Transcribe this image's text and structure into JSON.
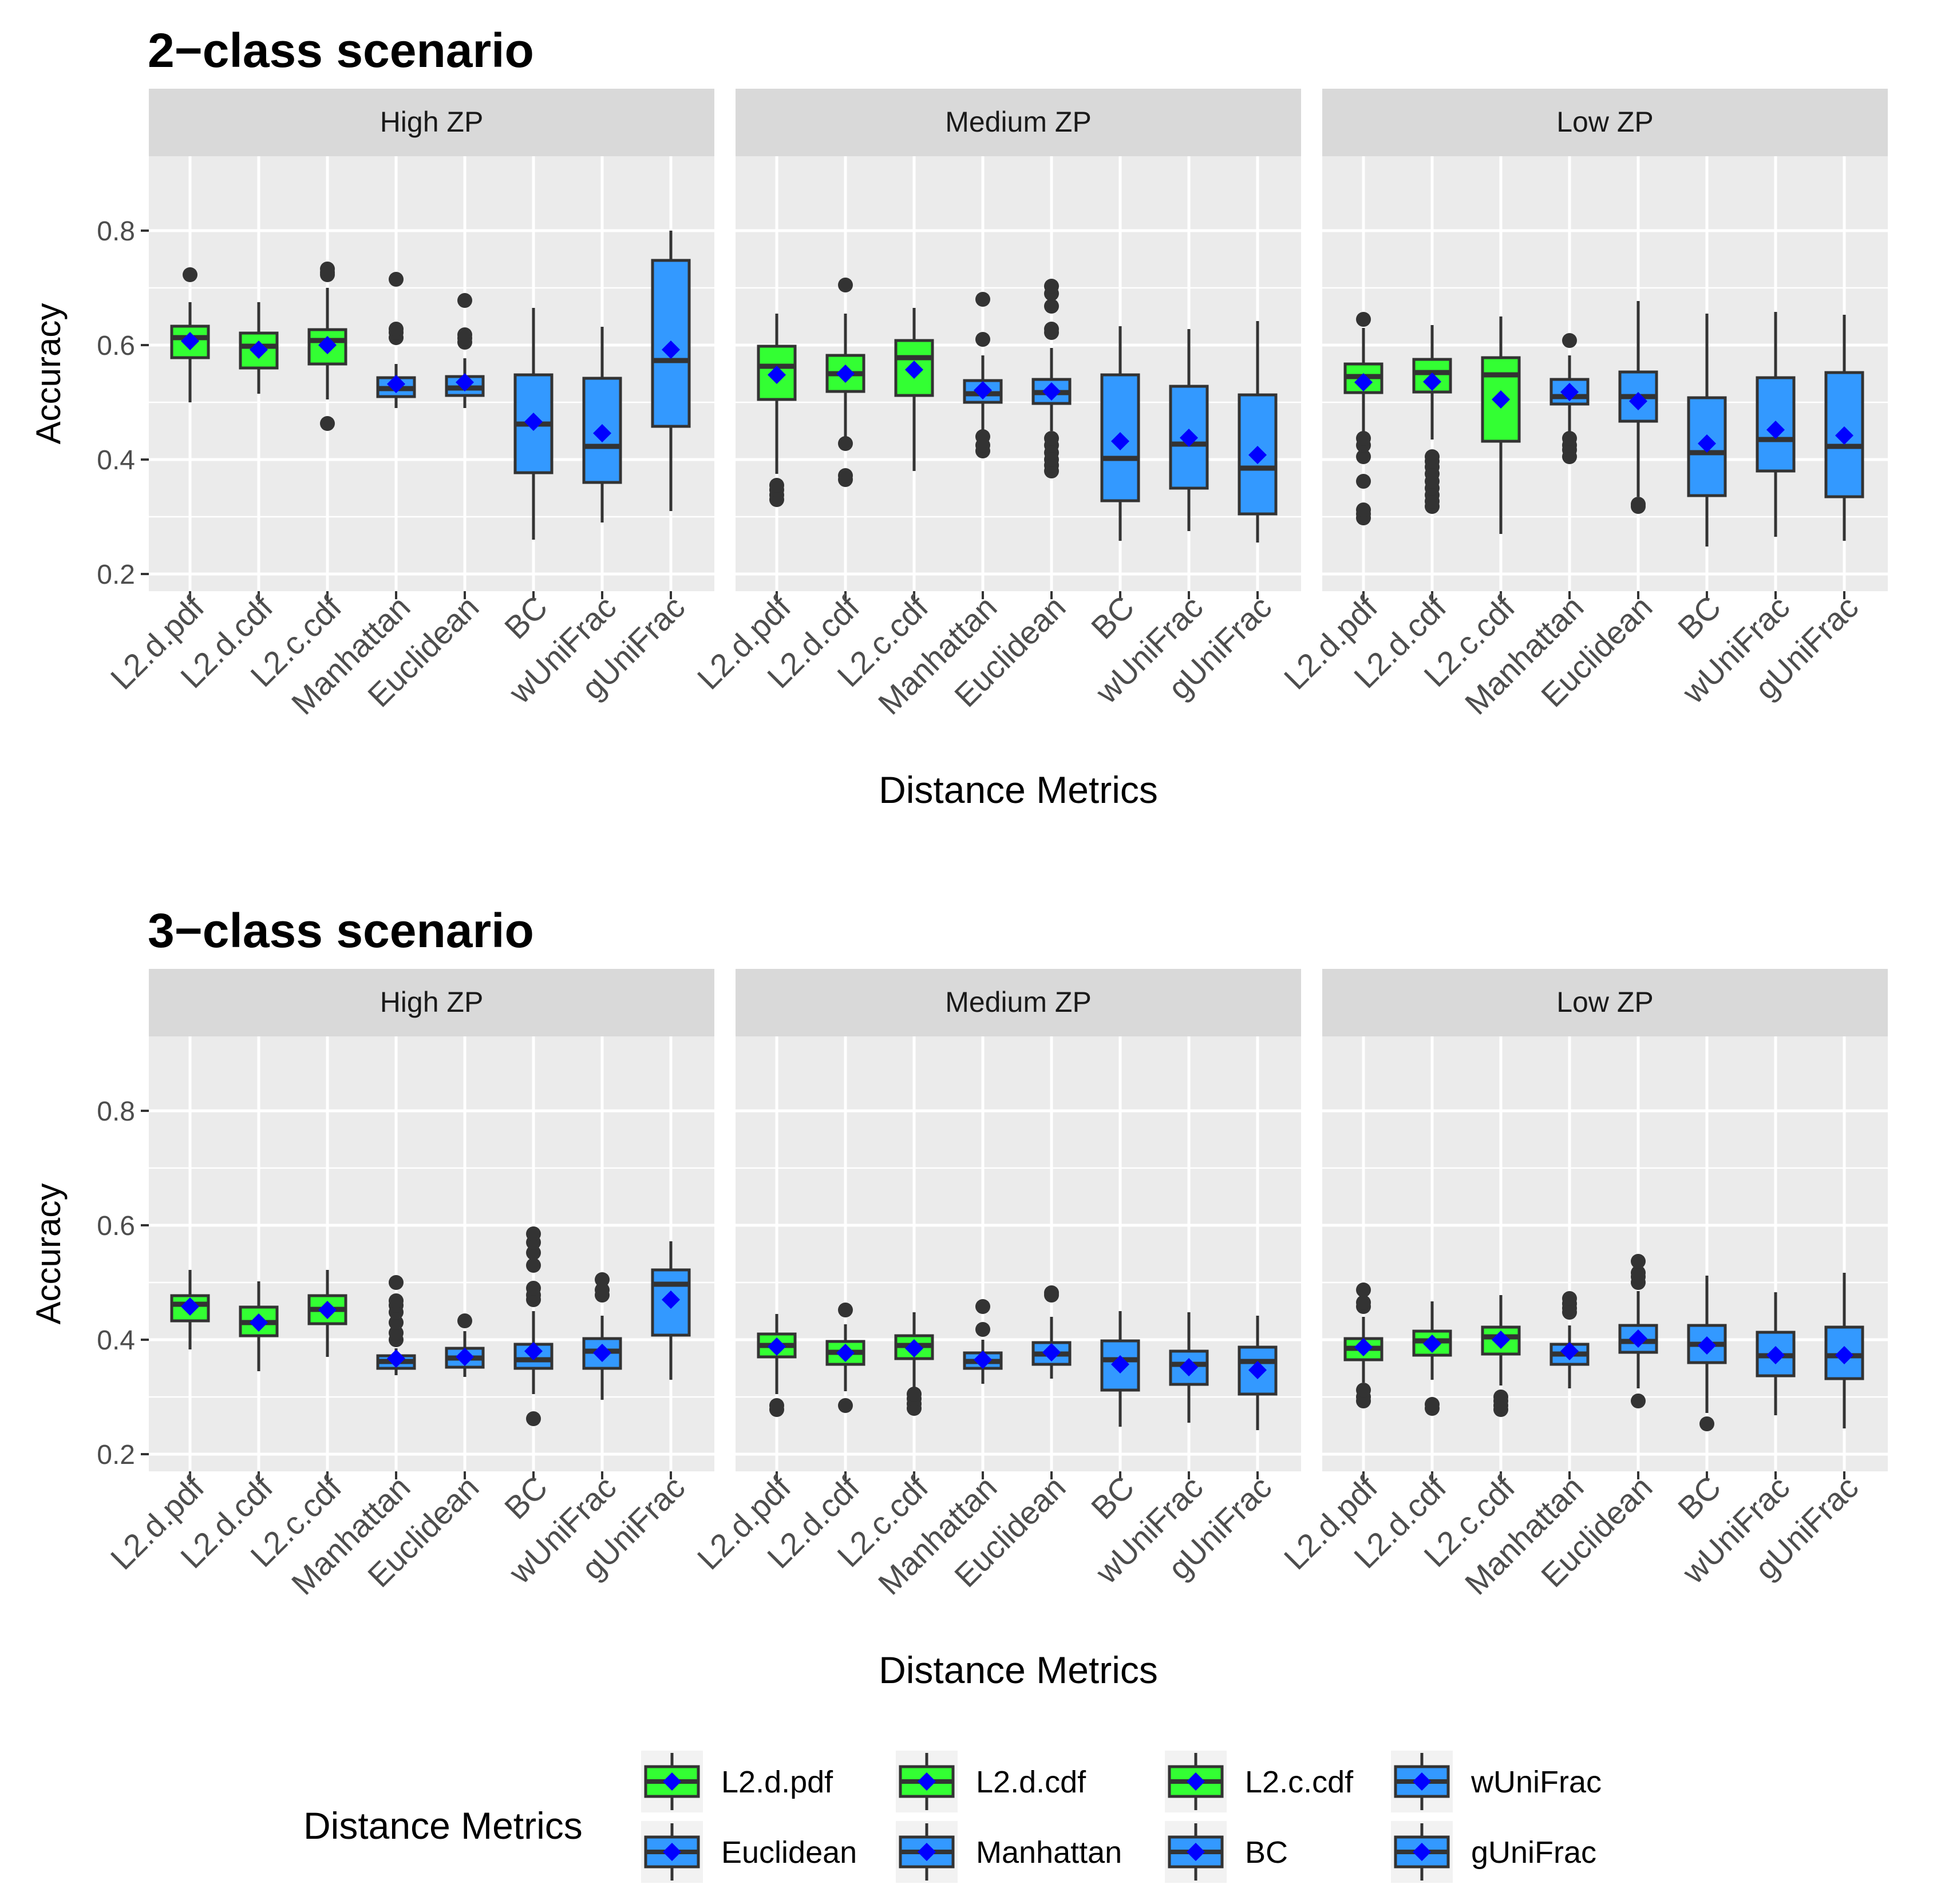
{
  "colors": {
    "l2": "#33FF33",
    "other": "#3399FF",
    "mean_marker": "#0000FF",
    "panel_bg": "#EBEBEB",
    "strip_bg": "#D9D9D9",
    "box_line": "#333333",
    "tick_text": "#4D4D4D"
  },
  "legend": {
    "title": "Distance Metrics",
    "items": [
      {
        "label": "L2.d.pdf",
        "color": "l2"
      },
      {
        "label": "L2.d.cdf",
        "color": "l2"
      },
      {
        "label": "L2.c.cdf",
        "color": "l2"
      },
      {
        "label": "wUniFrac",
        "color": "other"
      },
      {
        "label": "Euclidean",
        "color": "other"
      },
      {
        "label": "Manhattan",
        "color": "other"
      },
      {
        "label": "BC",
        "color": "other"
      },
      {
        "label": "gUniFrac",
        "color": "other"
      }
    ]
  },
  "chart_data": [
    {
      "type": "boxplot",
      "title": "2−class scenario",
      "xlabel": "Distance Metrics",
      "ylabel": "Accuracy",
      "ylim": [
        0.17,
        0.93
      ],
      "yticks": [
        0.2,
        0.4,
        0.6,
        0.8
      ],
      "ytick_labels": [
        "0.2",
        "0.4",
        "0.6",
        "0.8"
      ],
      "categories": [
        "L2.d.pdf",
        "L2.d.cdf",
        "L2.c.cdf",
        "Manhattan",
        "Euclidean",
        "BC",
        "wUniFrac",
        "gUniFrac"
      ],
      "category_colors": [
        "l2",
        "l2",
        "l2",
        "other",
        "other",
        "other",
        "other",
        "other"
      ],
      "facets": [
        {
          "label": "High ZP",
          "boxes": [
            {
              "min": 0.5,
              "q1": 0.578,
              "median": 0.613,
              "q3": 0.633,
              "max": 0.675,
              "mean": 0.607,
              "outliers": [
                0.723
              ]
            },
            {
              "min": 0.515,
              "q1": 0.56,
              "median": 0.598,
              "q3": 0.621,
              "max": 0.675,
              "mean": 0.592,
              "outliers": []
            },
            {
              "min": 0.505,
              "q1": 0.567,
              "median": 0.608,
              "q3": 0.627,
              "max": 0.7,
              "mean": 0.6,
              "outliers": [
                0.463,
                0.723,
                0.727,
                0.733
              ]
            },
            {
              "min": 0.49,
              "q1": 0.51,
              "median": 0.524,
              "q3": 0.543,
              "max": 0.567,
              "mean": 0.532,
              "outliers": [
                0.613,
                0.622,
                0.628,
                0.715
              ]
            },
            {
              "min": 0.49,
              "q1": 0.512,
              "median": 0.525,
              "q3": 0.545,
              "max": 0.577,
              "mean": 0.535,
              "outliers": [
                0.605,
                0.612,
                0.618,
                0.678
              ]
            },
            {
              "min": 0.26,
              "q1": 0.377,
              "median": 0.462,
              "q3": 0.548,
              "max": 0.665,
              "mean": 0.466,
              "outliers": []
            },
            {
              "min": 0.29,
              "q1": 0.36,
              "median": 0.423,
              "q3": 0.542,
              "max": 0.632,
              "mean": 0.446,
              "outliers": []
            },
            {
              "min": 0.31,
              "q1": 0.458,
              "median": 0.573,
              "q3": 0.748,
              "max": 0.8,
              "mean": 0.592,
              "outliers": []
            }
          ]
        },
        {
          "label": "Medium ZP",
          "boxes": [
            {
              "min": 0.375,
              "q1": 0.505,
              "median": 0.563,
              "q3": 0.598,
              "max": 0.655,
              "mean": 0.548,
              "outliers": [
                0.33,
                0.338,
                0.347,
                0.355
              ]
            },
            {
              "min": 0.44,
              "q1": 0.519,
              "median": 0.55,
              "q3": 0.582,
              "max": 0.655,
              "mean": 0.55,
              "outliers": [
                0.365,
                0.372,
                0.428,
                0.705
              ]
            },
            {
              "min": 0.38,
              "q1": 0.512,
              "median": 0.578,
              "q3": 0.608,
              "max": 0.665,
              "mean": 0.557,
              "outliers": []
            },
            {
              "min": 0.45,
              "q1": 0.5,
              "median": 0.515,
              "q3": 0.538,
              "max": 0.582,
              "mean": 0.521,
              "outliers": [
                0.415,
                0.425,
                0.44,
                0.61,
                0.68
              ]
            },
            {
              "min": 0.45,
              "q1": 0.498,
              "median": 0.517,
              "q3": 0.54,
              "max": 0.595,
              "mean": 0.519,
              "outliers": [
                0.38,
                0.39,
                0.4,
                0.412,
                0.425,
                0.437,
                0.622,
                0.628,
                0.668,
                0.69,
                0.703
              ]
            },
            {
              "min": 0.258,
              "q1": 0.328,
              "median": 0.402,
              "q3": 0.548,
              "max": 0.633,
              "mean": 0.432,
              "outliers": []
            },
            {
              "min": 0.275,
              "q1": 0.35,
              "median": 0.427,
              "q3": 0.528,
              "max": 0.628,
              "mean": 0.438,
              "outliers": []
            },
            {
              "min": 0.255,
              "q1": 0.305,
              "median": 0.385,
              "q3": 0.513,
              "max": 0.642,
              "mean": 0.408,
              "outliers": []
            }
          ]
        },
        {
          "label": "Low ZP",
          "boxes": [
            {
              "min": 0.445,
              "q1": 0.517,
              "median": 0.545,
              "q3": 0.567,
              "max": 0.63,
              "mean": 0.535,
              "outliers": [
                0.298,
                0.305,
                0.312,
                0.362,
                0.405,
                0.425,
                0.437,
                0.645
              ]
            },
            {
              "min": 0.435,
              "q1": 0.518,
              "median": 0.552,
              "q3": 0.575,
              "max": 0.635,
              "mean": 0.536,
              "outliers": [
                0.318,
                0.327,
                0.338,
                0.35,
                0.362,
                0.375,
                0.387,
                0.397,
                0.405
              ]
            },
            {
              "min": 0.27,
              "q1": 0.432,
              "median": 0.548,
              "q3": 0.578,
              "max": 0.65,
              "mean": 0.505,
              "outliers": []
            },
            {
              "min": 0.44,
              "q1": 0.497,
              "median": 0.51,
              "q3": 0.54,
              "max": 0.582,
              "mean": 0.518,
              "outliers": [
                0.405,
                0.417,
                0.425,
                0.437,
                0.608
              ]
            },
            {
              "min": 0.335,
              "q1": 0.467,
              "median": 0.51,
              "q3": 0.553,
              "max": 0.677,
              "mean": 0.502,
              "outliers": [
                0.318,
                0.322
              ]
            },
            {
              "min": 0.248,
              "q1": 0.337,
              "median": 0.412,
              "q3": 0.508,
              "max": 0.655,
              "mean": 0.428,
              "outliers": []
            },
            {
              "min": 0.265,
              "q1": 0.38,
              "median": 0.435,
              "q3": 0.543,
              "max": 0.658,
              "mean": 0.452,
              "outliers": []
            },
            {
              "min": 0.258,
              "q1": 0.335,
              "median": 0.423,
              "q3": 0.552,
              "max": 0.653,
              "mean": 0.442,
              "outliers": []
            }
          ]
        }
      ]
    },
    {
      "type": "boxplot",
      "title": "3−class scenario",
      "xlabel": "Distance Metrics",
      "ylabel": "Accuracy",
      "ylim": [
        0.17,
        0.93
      ],
      "yticks": [
        0.2,
        0.4,
        0.6,
        0.8
      ],
      "ytick_labels": [
        "0.2",
        "0.4",
        "0.6",
        "0.8"
      ],
      "categories": [
        "L2.d.pdf",
        "L2.d.cdf",
        "L2.c.cdf",
        "Manhattan",
        "Euclidean",
        "BC",
        "wUniFrac",
        "gUniFrac"
      ],
      "category_colors": [
        "l2",
        "l2",
        "l2",
        "other",
        "other",
        "other",
        "other",
        "other"
      ],
      "facets": [
        {
          "label": "High ZP",
          "boxes": [
            {
              "min": 0.383,
              "q1": 0.433,
              "median": 0.462,
              "q3": 0.477,
              "max": 0.522,
              "mean": 0.458,
              "outliers": []
            },
            {
              "min": 0.345,
              "q1": 0.407,
              "median": 0.43,
              "q3": 0.457,
              "max": 0.502,
              "mean": 0.43,
              "outliers": []
            },
            {
              "min": 0.37,
              "q1": 0.428,
              "median": 0.453,
              "q3": 0.477,
              "max": 0.522,
              "mean": 0.452,
              "outliers": []
            },
            {
              "min": 0.338,
              "q1": 0.35,
              "median": 0.362,
              "q3": 0.372,
              "max": 0.385,
              "mean": 0.367,
              "outliers": [
                0.4,
                0.412,
                0.43,
                0.448,
                0.46,
                0.468,
                0.5
              ]
            },
            {
              "min": 0.335,
              "q1": 0.352,
              "median": 0.368,
              "q3": 0.385,
              "max": 0.415,
              "mean": 0.37,
              "outliers": [
                0.433
              ]
            },
            {
              "min": 0.305,
              "q1": 0.35,
              "median": 0.365,
              "q3": 0.392,
              "max": 0.45,
              "mean": 0.38,
              "outliers": [
                0.262,
                0.47,
                0.478,
                0.49,
                0.53,
                0.552,
                0.57,
                0.585
              ]
            },
            {
              "min": 0.295,
              "q1": 0.35,
              "median": 0.38,
              "q3": 0.402,
              "max": 0.442,
              "mean": 0.377,
              "outliers": [
                0.478,
                0.487,
                0.505
              ]
            },
            {
              "min": 0.33,
              "q1": 0.408,
              "median": 0.497,
              "q3": 0.522,
              "max": 0.572,
              "mean": 0.47,
              "outliers": []
            }
          ]
        },
        {
          "label": "Medium ZP",
          "boxes": [
            {
              "min": 0.305,
              "q1": 0.37,
              "median": 0.39,
              "q3": 0.41,
              "max": 0.445,
              "mean": 0.388,
              "outliers": [
                0.278,
                0.285
              ]
            },
            {
              "min": 0.31,
              "q1": 0.357,
              "median": 0.378,
              "q3": 0.397,
              "max": 0.427,
              "mean": 0.377,
              "outliers": [
                0.285,
                0.452
              ]
            },
            {
              "min": 0.31,
              "q1": 0.367,
              "median": 0.39,
              "q3": 0.407,
              "max": 0.448,
              "mean": 0.385,
              "outliers": [
                0.28,
                0.288,
                0.297,
                0.305
              ]
            },
            {
              "min": 0.323,
              "q1": 0.35,
              "median": 0.362,
              "q3": 0.377,
              "max": 0.4,
              "mean": 0.365,
              "outliers": [
                0.418,
                0.458
              ]
            },
            {
              "min": 0.332,
              "q1": 0.357,
              "median": 0.375,
              "q3": 0.395,
              "max": 0.44,
              "mean": 0.378,
              "outliers": [
                0.478,
                0.482
              ]
            },
            {
              "min": 0.248,
              "q1": 0.312,
              "median": 0.365,
              "q3": 0.398,
              "max": 0.45,
              "mean": 0.357,
              "outliers": []
            },
            {
              "min": 0.255,
              "q1": 0.322,
              "median": 0.357,
              "q3": 0.38,
              "max": 0.448,
              "mean": 0.352,
              "outliers": []
            },
            {
              "min": 0.242,
              "q1": 0.305,
              "median": 0.362,
              "q3": 0.387,
              "max": 0.442,
              "mean": 0.347,
              "outliers": []
            }
          ]
        },
        {
          "label": "Low ZP",
          "boxes": [
            {
              "min": 0.325,
              "q1": 0.365,
              "median": 0.385,
              "q3": 0.402,
              "max": 0.44,
              "mean": 0.387,
              "outliers": [
                0.293,
                0.3,
                0.312,
                0.458,
                0.465,
                0.487
              ]
            },
            {
              "min": 0.33,
              "q1": 0.373,
              "median": 0.398,
              "q3": 0.415,
              "max": 0.467,
              "mean": 0.393,
              "outliers": [
                0.28,
                0.287
              ]
            },
            {
              "min": 0.32,
              "q1": 0.375,
              "median": 0.405,
              "q3": 0.422,
              "max": 0.478,
              "mean": 0.4,
              "outliers": [
                0.278,
                0.285,
                0.293,
                0.3
              ]
            },
            {
              "min": 0.315,
              "q1": 0.357,
              "median": 0.375,
              "q3": 0.392,
              "max": 0.425,
              "mean": 0.38,
              "outliers": [
                0.448,
                0.455,
                0.463,
                0.472
              ]
            },
            {
              "min": 0.315,
              "q1": 0.378,
              "median": 0.397,
              "q3": 0.425,
              "max": 0.485,
              "mean": 0.402,
              "outliers": [
                0.293,
                0.5,
                0.51,
                0.517,
                0.537
              ]
            },
            {
              "min": 0.272,
              "q1": 0.36,
              "median": 0.392,
              "q3": 0.425,
              "max": 0.512,
              "mean": 0.39,
              "outliers": [
                0.253
              ]
            },
            {
              "min": 0.268,
              "q1": 0.337,
              "median": 0.372,
              "q3": 0.413,
              "max": 0.483,
              "mean": 0.373,
              "outliers": []
            },
            {
              "min": 0.245,
              "q1": 0.332,
              "median": 0.372,
              "q3": 0.422,
              "max": 0.517,
              "mean": 0.373,
              "outliers": []
            }
          ]
        }
      ]
    }
  ]
}
